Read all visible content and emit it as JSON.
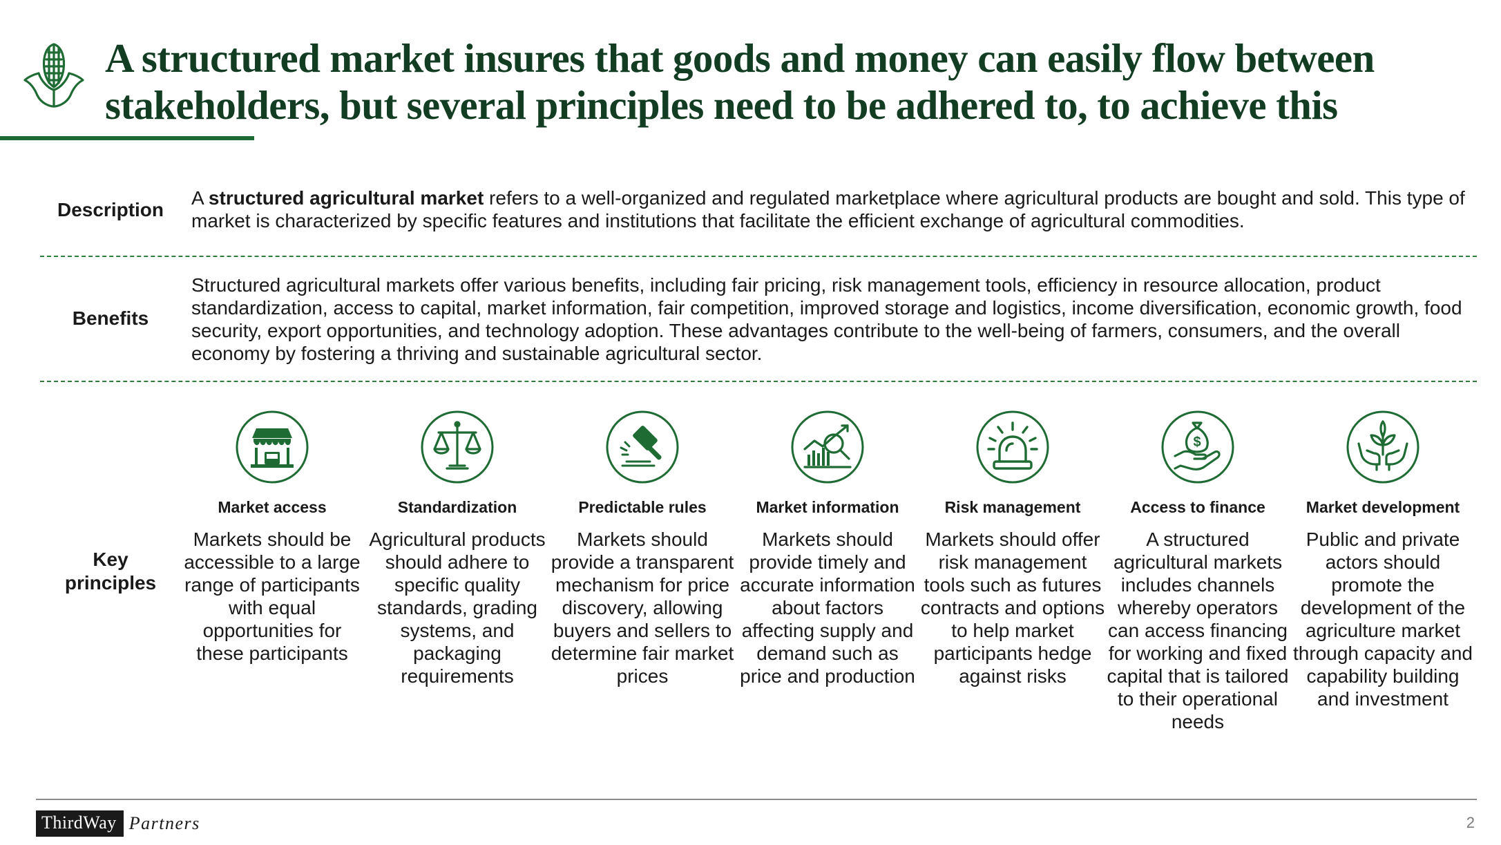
{
  "header": {
    "title_line1": "A structured market insures that goods and money can easily flow between",
    "title_line2": "stakeholders, but several principles need to be adhered to, to achieve this"
  },
  "description": {
    "label": "Description",
    "text_pre": "A ",
    "text_bold": "structured agricultural market",
    "text_post": " refers to a well-organized and regulated marketplace where agricultural products are bought and sold. This type of market is characterized by specific features and institutions that facilitate the efficient exchange of agricultural commodities."
  },
  "benefits": {
    "label": "Benefits",
    "text": "Structured agricultural markets offer various benefits, including fair pricing, risk management tools, efficiency in resource allocation, product standardization, access to capital, market information, fair competition, improved storage and logistics, income diversification, economic growth, food security, export opportunities, and technology adoption. These advantages contribute to the well-being of farmers, consumers, and the overall economy by fostering a thriving and sustainable agricultural sector."
  },
  "key_principles": {
    "label_line1": "Key",
    "label_line2": "principles",
    "items": [
      {
        "icon": "market-stall-icon",
        "title": "Market access",
        "text": "Markets should be accessible to a large range of participants with equal opportunities for these participants"
      },
      {
        "icon": "scales-icon",
        "title": "Standardization",
        "text": "Agricultural products should adhere to specific quality standards, grading systems, and packaging requirements"
      },
      {
        "icon": "gavel-icon",
        "title": "Predictable rules",
        "text": "Markets should provide a transparent mechanism for price discovery, allowing buyers and sellers to determine fair market prices"
      },
      {
        "icon": "analytics-icon",
        "title": "Market information",
        "text": "Markets should provide timely and accurate information about factors affecting supply and demand such as price and production"
      },
      {
        "icon": "alarm-icon",
        "title": "Risk management",
        "text": "Markets should offer risk management tools such as futures contracts and options to help market participants hedge against risks"
      },
      {
        "icon": "money-bag-hand-icon",
        "title": "Access to finance",
        "text": "A structured agricultural markets includes channels whereby operators can access financing for working and fixed capital that is tailored to their operational needs"
      },
      {
        "icon": "plant-hands-icon",
        "title": "Market development",
        "text": "Public and private actors should promote the development of the agriculture market through capacity and capability building and investment"
      }
    ]
  },
  "footer": {
    "brand_box": "ThirdWay",
    "brand_italic": "Partners",
    "page_number": "2"
  },
  "colors": {
    "brand_green": "#1e6b34",
    "title_green": "#133d22"
  }
}
